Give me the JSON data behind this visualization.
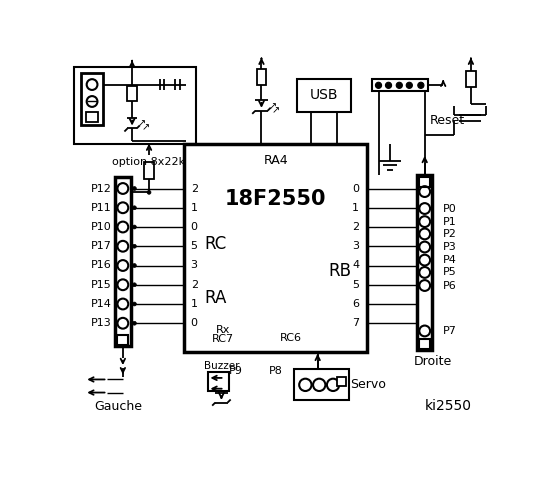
{
  "title": "ki2550",
  "bg_color": "#ffffff",
  "chip_label": "18F2550",
  "chip_ra4": "RA4",
  "chip_rc_label": "RC",
  "chip_ra_label": "RA",
  "chip_rb_label": "RB",
  "chip_rc6": "RC6",
  "left_labels": [
    "P12",
    "P11",
    "P10",
    "P17",
    "P16",
    "P15",
    "P14",
    "P13"
  ],
  "right_labels": [
    "P0",
    "P1",
    "P2",
    "P3",
    "P4",
    "P5",
    "P6",
    "P7"
  ],
  "rc_nums": [
    "2",
    "1",
    "0"
  ],
  "ra_nums": [
    "5",
    "3",
    "2",
    "1",
    "0"
  ],
  "rb_nums": [
    "0",
    "1",
    "2",
    "3",
    "4",
    "5",
    "6",
    "7"
  ],
  "option_text": "option 8x22k",
  "gauche_text": "Gauche",
  "droite_text": "Droite",
  "buzzer_text": "Buzzer",
  "servo_text": "Servo",
  "usb_text": "USB",
  "reset_text": "Reset",
  "p8_text": "P8",
  "p9_text": "P9"
}
